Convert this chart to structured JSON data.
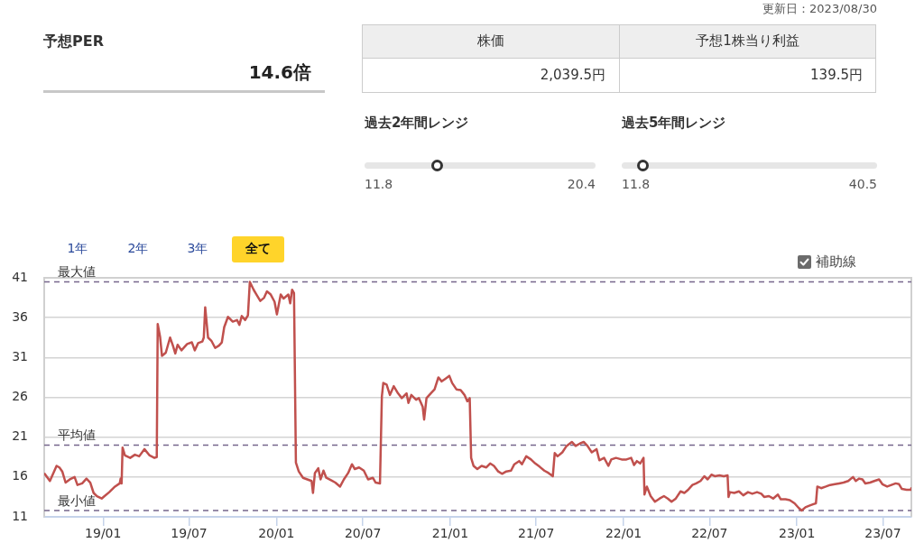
{
  "chart_data": {
    "type": "line",
    "title": "予想PER",
    "annotations": [
      "更新日：2023/08/30",
      "14.6倍",
      "株価",
      "予想1株当り利益",
      "2,039.5円",
      "139.5円",
      "過去2年間レンジ",
      "11.8",
      "20.4",
      "過去5年間レンジ",
      "11.8",
      "40.5",
      "1年",
      "2年",
      "3年",
      "全て",
      "補助線"
    ],
    "x": [
      "2018-08-31",
      "2018-09-11",
      "2018-09-25",
      "2018-10-01",
      "2018-10-07",
      "2018-10-14",
      "2018-10-23",
      "2018-11-02",
      "2018-11-08",
      "2018-11-18",
      "2018-11-27",
      "2018-12-05",
      "2018-12-12",
      "2018-12-19",
      "2018-12-29",
      "2019-01-04",
      "2019-01-14",
      "2019-01-26",
      "2019-02-05",
      "2019-02-07",
      "2019-02-09",
      "2019-02-11",
      "2019-02-16",
      "2019-02-27",
      "2019-03-09",
      "2019-03-18",
      "2019-03-29",
      "2019-04-09",
      "2019-04-19",
      "2019-04-24",
      "2019-04-26",
      "2019-05-01",
      "2019-05-05",
      "2019-05-13",
      "2019-05-22",
      "2019-05-28",
      "2019-06-02",
      "2019-06-07",
      "2019-06-15",
      "2019-06-27",
      "2019-07-07",
      "2019-07-13",
      "2019-07-20",
      "2019-07-29",
      "2019-08-01",
      "2019-08-04",
      "2019-08-10",
      "2019-08-17",
      "2019-08-25",
      "2019-09-02",
      "2019-09-08",
      "2019-09-13",
      "2019-09-21",
      "2019-10-01",
      "2019-10-10",
      "2019-10-15",
      "2019-10-20",
      "2019-10-27",
      "2019-11-02",
      "2019-11-06",
      "2019-11-14",
      "2019-11-20",
      "2019-11-28",
      "2019-12-06",
      "2019-12-12",
      "2019-12-20",
      "2019-12-28",
      "2020-01-02",
      "2020-01-10",
      "2020-01-16",
      "2020-01-26",
      "2020-01-30",
      "2020-02-03",
      "2020-02-07",
      "2020-02-11",
      "2020-02-17",
      "2020-02-26",
      "2020-03-15",
      "2020-03-18",
      "2020-03-22",
      "2020-03-29",
      "2020-04-03",
      "2020-04-09",
      "2020-04-15",
      "2020-04-25",
      "2020-05-04",
      "2020-05-14",
      "2020-05-22",
      "2020-05-31",
      "2020-06-08",
      "2020-06-14",
      "2020-06-23",
      "2020-07-03",
      "2020-07-12",
      "2020-07-22",
      "2020-07-28",
      "2020-08-06",
      "2020-08-10",
      "2020-08-13",
      "2020-08-20",
      "2020-08-27",
      "2020-09-04",
      "2020-09-13",
      "2020-09-21",
      "2020-10-01",
      "2020-10-05",
      "2020-10-11",
      "2020-10-21",
      "2020-10-27",
      "2020-11-04",
      "2020-11-07",
      "2020-11-12",
      "2020-11-21",
      "2020-11-29",
      "2020-12-07",
      "2020-12-14",
      "2020-12-21",
      "2020-12-30",
      "2021-01-05",
      "2021-01-14",
      "2021-01-23",
      "2021-01-31",
      "2021-02-06",
      "2021-02-11",
      "2021-02-14",
      "2021-02-19",
      "2021-02-27",
      "2021-03-08",
      "2021-03-18",
      "2021-03-26",
      "2021-04-03",
      "2021-04-12",
      "2021-04-20",
      "2021-04-29",
      "2021-05-09",
      "2021-05-16",
      "2021-05-26",
      "2021-06-01",
      "2021-06-10",
      "2021-06-20",
      "2021-06-29",
      "2021-07-08",
      "2021-07-18",
      "2021-07-27",
      "2021-08-05",
      "2021-08-09",
      "2021-08-15",
      "2021-08-25",
      "2021-09-03",
      "2021-09-14",
      "2021-09-22",
      "2021-10-01",
      "2021-10-09",
      "2021-10-17",
      "2021-10-26",
      "2021-11-05",
      "2021-11-11",
      "2021-11-21",
      "2021-11-30",
      "2021-12-06",
      "2021-12-16",
      "2021-12-28",
      "2022-01-07",
      "2022-01-17",
      "2022-01-23",
      "2022-01-29",
      "2022-02-05",
      "2022-02-12",
      "2022-02-14",
      "2022-02-19",
      "2022-02-27",
      "2022-03-08",
      "2022-03-18",
      "2022-03-27",
      "2022-04-04",
      "2022-04-12",
      "2022-04-21",
      "2022-05-01",
      "2022-05-09",
      "2022-05-17",
      "2022-05-26",
      "2022-06-03",
      "2022-06-12",
      "2022-06-20",
      "2022-06-27",
      "2022-07-05",
      "2022-07-12",
      "2022-07-22",
      "2022-07-31",
      "2022-08-08",
      "2022-08-10",
      "2022-08-13",
      "2022-08-22",
      "2022-09-01",
      "2022-09-10",
      "2022-09-20",
      "2022-09-29",
      "2022-10-09",
      "2022-10-18",
      "2022-10-24",
      "2022-11-03",
      "2022-11-12",
      "2022-11-22",
      "2022-11-28",
      "2022-12-08",
      "2022-12-17",
      "2022-12-27",
      "2023-01-05",
      "2023-01-11",
      "2023-01-19",
      "2023-01-27",
      "2023-02-05",
      "2023-02-10",
      "2023-02-13",
      "2023-02-21",
      "2023-03-03",
      "2023-03-12",
      "2023-03-22",
      "2023-03-31",
      "2023-04-09",
      "2023-04-19",
      "2023-04-29",
      "2023-05-05",
      "2023-05-12",
      "2023-05-19",
      "2023-05-25",
      "2023-06-04",
      "2023-06-13",
      "2023-06-23",
      "2023-06-30",
      "2023-07-10",
      "2023-07-19",
      "2023-07-28",
      "2023-08-04",
      "2023-08-10",
      "2023-08-20",
      "2023-08-29",
      "2023-08-30"
    ],
    "values": [
      16.4,
      15.5,
      17.4,
      17.2,
      16.7,
      15.3,
      15.7,
      16.0,
      15.0,
      15.2,
      15.8,
      15.3,
      14.0,
      13.6,
      13.3,
      13.6,
      14.1,
      14.8,
      15.2,
      15.8,
      15.2,
      19.7,
      18.7,
      18.4,
      18.8,
      18.6,
      19.5,
      18.7,
      18.4,
      18.5,
      35.2,
      33.6,
      31.2,
      31.6,
      33.5,
      32.5,
      31.5,
      32.6,
      31.9,
      32.7,
      32.9,
      31.9,
      32.8,
      33.0,
      33.5,
      37.3,
      33.5,
      33.1,
      32.2,
      32.5,
      32.9,
      34.8,
      36.1,
      35.5,
      35.7,
      35.1,
      36.2,
      35.7,
      36.3,
      40.5,
      39.5,
      38.9,
      38.1,
      38.5,
      39.3,
      38.9,
      38.0,
      36.4,
      38.9,
      38.4,
      38.9,
      37.8,
      39.5,
      39.1,
      17.8,
      16.7,
      15.9,
      15.5,
      14.0,
      16.5,
      17.1,
      15.7,
      16.8,
      15.9,
      15.6,
      15.3,
      14.8,
      15.7,
      16.5,
      17.6,
      17.0,
      17.2,
      16.8,
      15.7,
      15.9,
      15.3,
      15.2,
      26.1,
      27.8,
      27.6,
      26.3,
      27.4,
      26.5,
      25.9,
      26.5,
      25.3,
      26.3,
      25.7,
      25.9,
      24.8,
      23.2,
      25.9,
      26.5,
      27.0,
      28.5,
      28.0,
      28.3,
      28.7,
      27.8,
      27.0,
      26.9,
      26.3,
      25.5,
      25.9,
      18.4,
      17.4,
      17.0,
      17.4,
      17.2,
      17.7,
      17.4,
      16.7,
      16.4,
      16.7,
      16.8,
      17.6,
      18.0,
      17.6,
      18.6,
      18.2,
      17.7,
      17.3,
      16.8,
      16.5,
      16.1,
      19.0,
      18.6,
      19.1,
      19.9,
      20.4,
      19.9,
      20.2,
      20.4,
      19.9,
      19.1,
      19.5,
      18.1,
      18.4,
      17.4,
      18.2,
      18.4,
      18.2,
      18.2,
      18.4,
      17.5,
      18.0,
      17.7,
      18.4,
      13.8,
      14.8,
      13.6,
      12.9,
      13.3,
      13.6,
      13.3,
      12.9,
      13.3,
      14.2,
      14.0,
      14.4,
      15.0,
      15.2,
      15.5,
      16.1,
      15.7,
      16.3,
      16.1,
      16.2,
      16.1,
      16.2,
      13.5,
      14.1,
      14.0,
      14.2,
      13.7,
      14.1,
      13.9,
      14.1,
      13.9,
      13.5,
      13.6,
      13.3,
      13.8,
      13.2,
      13.2,
      13.1,
      12.7,
      12.1,
      11.8,
      12.2,
      12.4,
      12.6,
      12.7,
      14.8,
      14.6,
      14.8,
      15.0,
      15.1,
      15.2,
      15.3,
      15.5,
      16.0,
      15.5,
      15.8,
      15.7,
      15.2,
      15.3,
      15.5,
      15.7,
      15.1,
      14.8,
      15.0,
      15.2,
      15.1,
      14.5,
      14.4,
      14.4,
      14.6
    ],
    "color": "#c0504d",
    "xlim": [
      "2018-08-30",
      "2023-08-30"
    ],
    "xticks": [
      {
        "value": "2019-01-01",
        "label": "19/01"
      },
      {
        "value": "2019-07-01",
        "label": "19/07"
      },
      {
        "value": "2020-01-01",
        "label": "20/01"
      },
      {
        "value": "2020-07-01",
        "label": "20/07"
      },
      {
        "value": "2021-01-01",
        "label": "21/01"
      },
      {
        "value": "2021-07-01",
        "label": "21/07"
      },
      {
        "value": "2022-01-01",
        "label": "22/01"
      },
      {
        "value": "2022-07-01",
        "label": "22/07"
      },
      {
        "value": "2023-01-01",
        "label": "23/01"
      },
      {
        "value": "2023-07-01",
        "label": "23/07"
      }
    ],
    "ylim": [
      11,
      41
    ],
    "yticks": [
      11,
      16,
      21,
      26,
      31,
      36,
      41
    ],
    "grid": "y",
    "ref_lines": [
      {
        "axis": "y",
        "value": 40.5,
        "label": "最大値",
        "color": "#76668c",
        "line_style": "dashed"
      },
      {
        "axis": "y",
        "value": 20.0,
        "label": "平均値",
        "color": "#76668c",
        "line_style": "dashed"
      },
      {
        "axis": "y",
        "value": 11.8,
        "label": "最小値",
        "color": "#76668c",
        "line_style": "dashed"
      }
    ]
  }
}
